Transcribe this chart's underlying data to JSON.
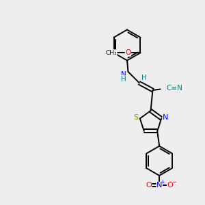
{
  "bg_color": "#eeeeee",
  "bond_color": "#000000",
  "atom_colors": {
    "N": "#0000ff",
    "O": "#ff0000",
    "S": "#999900",
    "C": "#000000",
    "H": "#008080",
    "CN": "#008080"
  },
  "lw": 1.4,
  "fs": 7.0
}
